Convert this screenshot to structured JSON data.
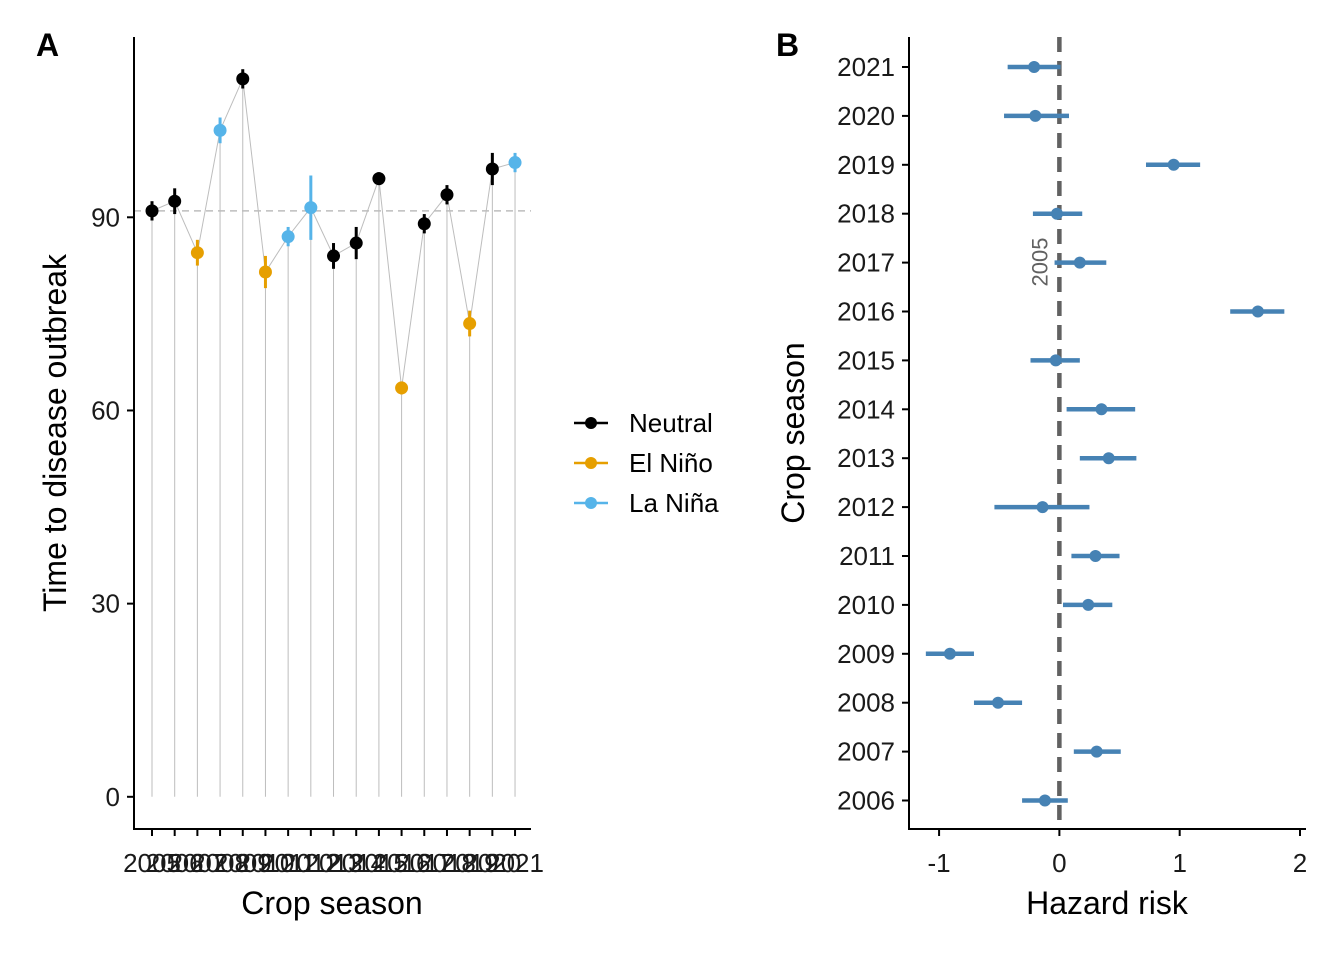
{
  "chart_data": [
    {
      "panel_label": "A",
      "type": "scatter",
      "xlabel": "Crop season",
      "ylabel": "Time to disease outbreak",
      "ylim": [
        -5,
        118
      ],
      "yticks": [
        0,
        30,
        60,
        90
      ],
      "reference_line": 91,
      "categories": [
        "2005",
        "2006",
        "2007",
        "2008",
        "2009",
        "2010",
        "2011",
        "2012",
        "2013",
        "2014",
        "2015",
        "2016",
        "2017",
        "2018",
        "2019",
        "2020",
        "2021"
      ],
      "points": [
        {
          "season": "2005",
          "value": 91.0,
          "low": 89.5,
          "high": 92.5,
          "phase": "Neutral"
        },
        {
          "season": "2006",
          "value": 92.5,
          "low": 90.5,
          "high": 94.5,
          "phase": "Neutral"
        },
        {
          "season": "2007",
          "value": 84.5,
          "low": 82.5,
          "high": 86.5,
          "phase": "El Niño"
        },
        {
          "season": "2008",
          "value": 103.5,
          "low": 101.5,
          "high": 105.5,
          "phase": "La Niña"
        },
        {
          "season": "2009",
          "value": 111.5,
          "low": 110.0,
          "high": 113.0,
          "phase": "Neutral"
        },
        {
          "season": "2010",
          "value": 81.5,
          "low": 79.0,
          "high": 84.0,
          "phase": "El Niño"
        },
        {
          "season": "2011",
          "value": 87.0,
          "low": 85.5,
          "high": 88.5,
          "phase": "La Niña"
        },
        {
          "season": "2012",
          "value": 91.5,
          "low": 86.5,
          "high": 96.5,
          "phase": "La Niña"
        },
        {
          "season": "2013",
          "value": 84.0,
          "low": 82.0,
          "high": 86.0,
          "phase": "Neutral"
        },
        {
          "season": "2014",
          "value": 86.0,
          "low": 83.5,
          "high": 88.5,
          "phase": "Neutral"
        },
        {
          "season": "2015",
          "value": 96.0,
          "low": 95.0,
          "high": 97.0,
          "phase": "Neutral"
        },
        {
          "season": "2016",
          "value": 63.5,
          "low": 62.5,
          "high": 64.5,
          "phase": "El Niño"
        },
        {
          "season": "2017",
          "value": 89.0,
          "low": 87.5,
          "high": 90.5,
          "phase": "Neutral"
        },
        {
          "season": "2018",
          "value": 93.5,
          "low": 92.0,
          "high": 95.0,
          "phase": "Neutral"
        },
        {
          "season": "2019",
          "value": 73.5,
          "low": 71.5,
          "high": 75.5,
          "phase": "El Niño"
        },
        {
          "season": "2020",
          "value": 97.5,
          "low": 95.0,
          "high": 100.0,
          "phase": "Neutral"
        },
        {
          "season": "2021",
          "value": 98.5,
          "low": 97.0,
          "high": 100.0,
          "phase": "La Niña"
        }
      ],
      "legend": {
        "placement": "right",
        "entries": [
          {
            "label": "Neutral",
            "color": "#000000"
          },
          {
            "label": "El Niño",
            "color": "#E69F00"
          },
          {
            "label": "La Niña",
            "color": "#56B4E9"
          }
        ]
      },
      "colors": {
        "connector": "#bdbdbd",
        "reference_line": "#bdbdbd"
      }
    },
    {
      "panel_label": "B",
      "type": "scatter",
      "xlabel": "Hazard risk",
      "ylabel": "Crop season",
      "xlim": [
        -1.25,
        2.05
      ],
      "xticks": [
        -1,
        0,
        1,
        2
      ],
      "reference_line": 0,
      "reference_label": "2005",
      "categories": [
        "2006",
        "2007",
        "2008",
        "2009",
        "2010",
        "2011",
        "2012",
        "2013",
        "2014",
        "2015",
        "2016",
        "2017",
        "2018",
        "2019",
        "2020",
        "2021"
      ],
      "points": [
        {
          "season": "2006",
          "estimate": -0.12,
          "low": -0.31,
          "high": 0.07
        },
        {
          "season": "2007",
          "estimate": 0.31,
          "low": 0.12,
          "high": 0.51
        },
        {
          "season": "2008",
          "estimate": -0.51,
          "low": -0.71,
          "high": -0.31
        },
        {
          "season": "2009",
          "estimate": -0.91,
          "low": -1.11,
          "high": -0.71
        },
        {
          "season": "2010",
          "estimate": 0.24,
          "low": 0.03,
          "high": 0.44
        },
        {
          "season": "2011",
          "estimate": 0.3,
          "low": 0.1,
          "high": 0.5
        },
        {
          "season": "2012",
          "estimate": -0.14,
          "low": -0.54,
          "high": 0.25
        },
        {
          "season": "2013",
          "estimate": 0.41,
          "low": 0.17,
          "high": 0.64
        },
        {
          "season": "2014",
          "estimate": 0.35,
          "low": 0.06,
          "high": 0.63
        },
        {
          "season": "2015",
          "estimate": -0.03,
          "low": -0.24,
          "high": 0.17
        },
        {
          "season": "2016",
          "estimate": 1.65,
          "low": 1.42,
          "high": 1.87
        },
        {
          "season": "2017",
          "estimate": 0.17,
          "low": -0.04,
          "high": 0.39
        },
        {
          "season": "2018",
          "estimate": -0.02,
          "low": -0.22,
          "high": 0.19
        },
        {
          "season": "2019",
          "estimate": 0.95,
          "low": 0.72,
          "high": 1.17
        },
        {
          "season": "2020",
          "estimate": -0.2,
          "low": -0.46,
          "high": 0.08
        },
        {
          "season": "2021",
          "estimate": -0.21,
          "low": -0.43,
          "high": 0.01
        }
      ],
      "colors": {
        "point": "#4682B4",
        "reference_line": "#616161"
      }
    }
  ]
}
